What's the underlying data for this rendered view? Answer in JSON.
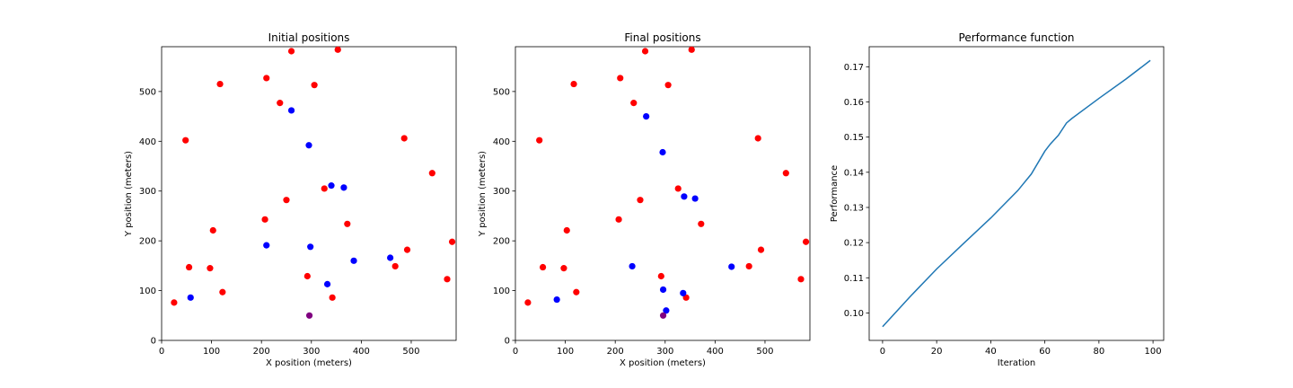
{
  "chart_data": [
    {
      "type": "scatter",
      "title": "Initial positions",
      "xlabel": "X position (meters)",
      "ylabel": "Y position (meters)",
      "xlim": [
        0,
        590
      ],
      "ylim": [
        0,
        590
      ],
      "xticks": [
        0,
        100,
        200,
        300,
        400,
        500
      ],
      "yticks": [
        0,
        100,
        200,
        300,
        400,
        500
      ],
      "grid": false,
      "series": [
        {
          "color": "#ff0000",
          "points": [
            [
              25,
              76
            ],
            [
              48,
              402
            ],
            [
              55,
              147
            ],
            [
              97,
              145
            ],
            [
              103,
              221
            ],
            [
              117,
              515
            ],
            [
              122,
              97
            ],
            [
              207,
              243
            ],
            [
              210,
              527
            ],
            [
              237,
              477
            ],
            [
              250,
              282
            ],
            [
              260,
              581
            ],
            [
              292,
              129
            ],
            [
              306,
              513
            ],
            [
              326,
              305
            ],
            [
              342,
              86
            ],
            [
              353,
              584
            ],
            [
              372,
              234
            ],
            [
              468,
              149
            ],
            [
              486,
              406
            ],
            [
              492,
              182
            ],
            [
              542,
              336
            ],
            [
              572,
              123
            ],
            [
              582,
              198
            ]
          ]
        },
        {
          "color": "#0000ff",
          "points": [
            [
              58,
              86
            ],
            [
              210,
              191
            ],
            [
              260,
              462
            ],
            [
              295,
              392
            ],
            [
              298,
              188
            ],
            [
              332,
              113
            ],
            [
              340,
              311
            ],
            [
              365,
              307
            ],
            [
              385,
              160
            ],
            [
              458,
              166
            ]
          ]
        },
        {
          "color": "#800080",
          "points": [
            [
              296,
              50
            ]
          ]
        }
      ]
    },
    {
      "type": "scatter",
      "title": "Final positions",
      "xlabel": "X position (meters)",
      "ylabel": "Y position (meters)",
      "xlim": [
        0,
        590
      ],
      "ylim": [
        0,
        590
      ],
      "xticks": [
        0,
        100,
        200,
        300,
        400,
        500
      ],
      "yticks": [
        0,
        100,
        200,
        300,
        400,
        500
      ],
      "grid": false,
      "series": [
        {
          "color": "#ff0000",
          "points": [
            [
              25,
              76
            ],
            [
              48,
              402
            ],
            [
              55,
              147
            ],
            [
              97,
              145
            ],
            [
              103,
              221
            ],
            [
              117,
              515
            ],
            [
              122,
              97
            ],
            [
              207,
              243
            ],
            [
              210,
              527
            ],
            [
              237,
              477
            ],
            [
              250,
              282
            ],
            [
              260,
              581
            ],
            [
              292,
              129
            ],
            [
              306,
              513
            ],
            [
              326,
              305
            ],
            [
              342,
              86
            ],
            [
              353,
              584
            ],
            [
              372,
              234
            ],
            [
              468,
              149
            ],
            [
              486,
              406
            ],
            [
              492,
              182
            ],
            [
              542,
              336
            ],
            [
              572,
              123
            ],
            [
              582,
              198
            ]
          ]
        },
        {
          "color": "#0000ff",
          "points": [
            [
              83,
              82
            ],
            [
              234,
              149
            ],
            [
              262,
              450
            ],
            [
              295,
              378
            ],
            [
              296,
              102
            ],
            [
              302,
              60
            ],
            [
              336,
              95
            ],
            [
              338,
              289
            ],
            [
              360,
              285
            ],
            [
              433,
              148
            ]
          ]
        },
        {
          "color": "#800080",
          "points": [
            [
              296,
              50
            ]
          ]
        }
      ]
    },
    {
      "type": "line",
      "title": "Performance function",
      "xlabel": "Iteration",
      "ylabel": "Performance",
      "xlim": [
        -4.95,
        103.95
      ],
      "ylim": [
        0.0922,
        0.1757
      ],
      "xticks": [
        0,
        20,
        40,
        60,
        80,
        100
      ],
      "yticks": [
        0.1,
        0.11,
        0.12,
        0.13,
        0.14,
        0.15,
        0.16,
        0.17
      ],
      "grid": false,
      "series": [
        {
          "color": "#1f77b4",
          "x": [
            0,
            10,
            20,
            30,
            40,
            50,
            55,
            60,
            62,
            65,
            68,
            70,
            80,
            90,
            99
          ],
          "y": [
            0.0961,
            0.1045,
            0.1125,
            0.1198,
            0.127,
            0.1348,
            0.1395,
            0.146,
            0.148,
            0.1505,
            0.154,
            0.1553,
            0.161,
            0.1665,
            0.1718
          ]
        }
      ]
    }
  ]
}
